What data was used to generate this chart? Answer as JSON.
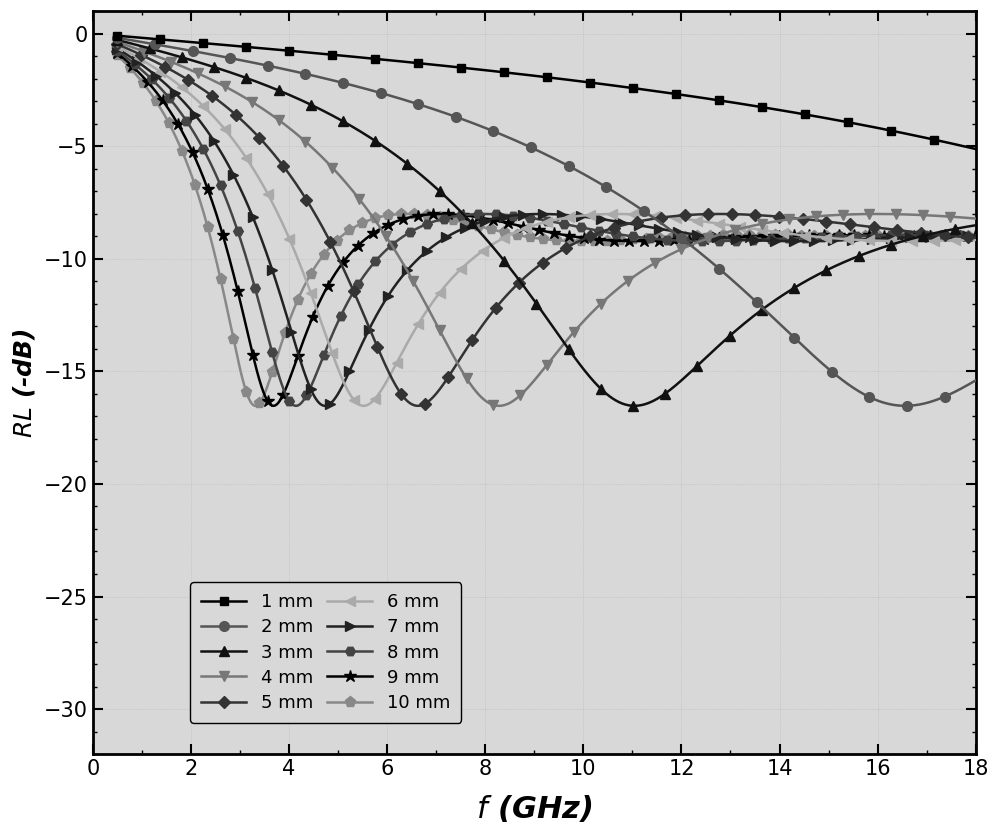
{
  "xlabel": "$f$ (GHz)",
  "ylabel": "$RL$ (-dB)",
  "xlim": [
    0,
    18
  ],
  "ylim": [
    -32,
    1
  ],
  "yticks": [
    0,
    -5,
    -10,
    -15,
    -20,
    -25,
    -30
  ],
  "xticks": [
    0,
    2,
    4,
    6,
    8,
    10,
    12,
    14,
    16,
    18
  ],
  "thicknesses_mm": [
    1,
    2,
    3,
    4,
    5,
    6,
    7,
    8,
    9,
    10
  ],
  "line_colors": [
    "#000000",
    "#555555",
    "#1a1a1a",
    "#777777",
    "#333333",
    "#999999",
    "#222222",
    "#444444",
    "#000000",
    "#aaaaaa"
  ],
  "markers": [
    "s",
    "o",
    "^",
    "v",
    "D",
    "<",
    ">",
    "H",
    "*",
    "p"
  ],
  "marker_sizes": [
    6,
    7,
    7,
    7,
    6,
    7,
    7,
    7,
    9,
    8
  ],
  "linewidths": [
    1.8,
    1.8,
    1.8,
    1.8,
    1.8,
    1.8,
    1.8,
    1.8,
    1.8,
    1.8
  ],
  "freq_min": 0.5,
  "freq_max": 18.0,
  "freq_points": 800,
  "eps_r": 7.0,
  "eps_i": 3.5,
  "mu_r": 2.2,
  "mu_i": 1.2,
  "legend_fontsize": 13,
  "tick_fontsize": 15,
  "xlabel_fontsize": 22,
  "ylabel_fontsize": 18
}
